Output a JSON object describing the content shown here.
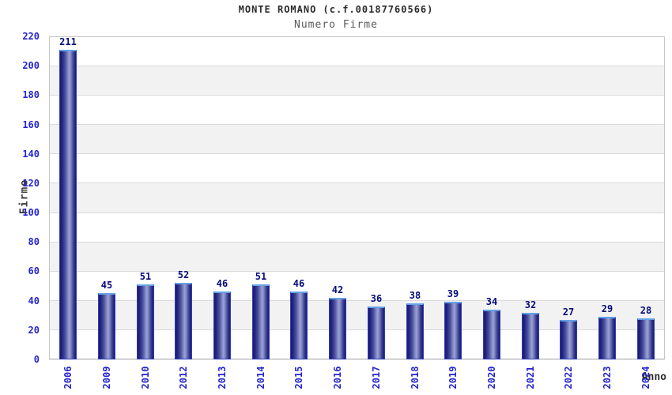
{
  "header": {
    "title": "MONTE ROMANO (c.f.00187760566)",
    "subtitle": "Numero Firme"
  },
  "chart_data": {
    "type": "bar",
    "title": "MONTE ROMANO (c.f.00187760566)",
    "subtitle": "Numero Firme",
    "xlabel": "Anno",
    "ylabel": "Firme",
    "categories": [
      "2006",
      "2009",
      "2010",
      "2012",
      "2013",
      "2014",
      "2015",
      "2016",
      "2017",
      "2018",
      "2019",
      "2020",
      "2021",
      "2022",
      "2023",
      "2024"
    ],
    "values": [
      211,
      45,
      51,
      52,
      46,
      51,
      46,
      42,
      36,
      38,
      39,
      34,
      32,
      27,
      29,
      28
    ],
    "ylim": [
      0,
      220
    ],
    "yticks": [
      0,
      20,
      40,
      60,
      80,
      100,
      120,
      140,
      160,
      180,
      200,
      220
    ],
    "grid": true,
    "grid_bands": true,
    "legend_position": "none",
    "value_labels_shown": true
  },
  "colors": {
    "bar_dark": "#1a1a6e",
    "bar_light": "#9ba3d4",
    "bar_border": "#2c3dc0",
    "bar_top_highlight": "#64a2e4",
    "tick_label": "#2424cd",
    "value_label": "#050a78",
    "band_gray": "#f2f2f2",
    "gridline": "#dadada",
    "axis_line": "#a0a0a0",
    "title_text": "#2b2b2b",
    "subtitle_text": "#5a5a5a"
  }
}
